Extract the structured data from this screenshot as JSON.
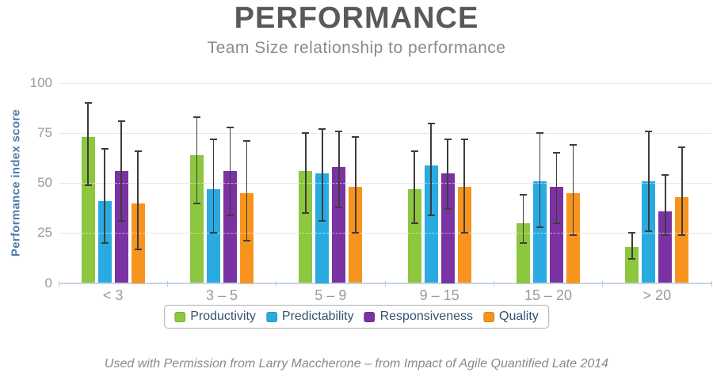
{
  "header": {
    "title": "PERFORMANCE",
    "subtitle": "Team Size relationship to performance"
  },
  "caption": "Used with Permission from Larry Maccherone – from Impact of Agile Quantified Late 2014",
  "colors": {
    "title": "#58595B",
    "subtitle": "#8B8B8B",
    "axis_title": "#4F7CAC",
    "tick_labels": "#9A9A9A",
    "gridline": "#E7E7E7",
    "axis_line": "#C3D3E8",
    "error_bar": "#3D3D3D",
    "legend_text": "#33536E",
    "legend_border": "#AFAFAF",
    "caption": "#8A8A8A",
    "background": "#FFFFFF"
  },
  "chart_data": {
    "type": "bar",
    "title": "PERFORMANCE",
    "subtitle": "Team Size relationship to performance",
    "xlabel": "",
    "ylabel": "Performance index score",
    "ylim": [
      0,
      100
    ],
    "yticks": [
      0,
      25,
      50,
      75,
      100
    ],
    "grid": true,
    "legend_position": "bottom",
    "error_bars_shown": true,
    "categories": [
      "< 3",
      "3 – 5",
      "5 – 9",
      "9 – 15",
      "15 – 20",
      "> 20"
    ],
    "series": [
      {
        "name": "Productivity",
        "color": "#8DC63F",
        "values": [
          73,
          64,
          56,
          47,
          30,
          18
        ],
        "error_bars": [
          [
            49,
            90
          ],
          [
            40,
            83
          ],
          [
            35,
            75
          ],
          [
            30,
            66
          ],
          [
            20,
            44
          ],
          [
            12,
            25
          ]
        ]
      },
      {
        "name": "Predictability",
        "color": "#29ABE2",
        "values": [
          41,
          47,
          55,
          59,
          51,
          51
        ],
        "error_bars": [
          [
            20,
            67
          ],
          [
            25,
            72
          ],
          [
            31,
            77
          ],
          [
            34,
            80
          ],
          [
            28,
            75
          ],
          [
            26,
            76
          ]
        ]
      },
      {
        "name": "Responsiveness",
        "color": "#7B32A2",
        "values": [
          56,
          56,
          58,
          55,
          48,
          36
        ],
        "error_bars": [
          [
            31,
            81
          ],
          [
            34,
            78
          ],
          [
            38,
            76
          ],
          [
            37,
            72
          ],
          [
            30,
            65
          ],
          [
            24,
            54
          ]
        ]
      },
      {
        "name": "Quality",
        "color": "#F7941E",
        "values": [
          40,
          45,
          48,
          48,
          45,
          43
        ],
        "error_bars": [
          [
            17,
            66
          ],
          [
            21,
            71
          ],
          [
            25,
            73
          ],
          [
            25,
            72
          ],
          [
            24,
            69
          ],
          [
            24,
            68
          ]
        ]
      }
    ]
  }
}
